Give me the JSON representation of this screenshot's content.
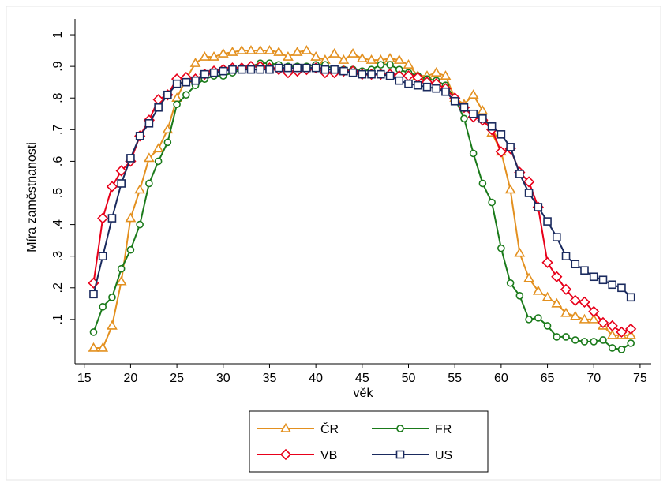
{
  "chart_data": {
    "type": "line",
    "x_label": "věk",
    "y_label": "Míra zaměstnanosti",
    "x": [
      16,
      17,
      18,
      19,
      20,
      21,
      22,
      23,
      24,
      25,
      26,
      27,
      28,
      29,
      30,
      31,
      32,
      33,
      34,
      35,
      36,
      37,
      38,
      39,
      40,
      41,
      42,
      43,
      44,
      45,
      46,
      47,
      48,
      49,
      50,
      51,
      52,
      53,
      54,
      55,
      56,
      57,
      58,
      59,
      60,
      61,
      62,
      63,
      64,
      65,
      66,
      67,
      68,
      69,
      70,
      71,
      72,
      73,
      74
    ],
    "xlim": [
      14,
      76.2
    ],
    "xticks": [
      15,
      20,
      25,
      30,
      35,
      40,
      45,
      50,
      55,
      60,
      65,
      70,
      75
    ],
    "ylim": [
      -0.04,
      1.05
    ],
    "yticks": [
      {
        "value": 0.1,
        "label": ".1"
      },
      {
        "value": 0.2,
        "label": ".2"
      },
      {
        "value": 0.3,
        "label": ".3"
      },
      {
        "value": 0.4,
        "label": ".4"
      },
      {
        "value": 0.5,
        "label": ".5"
      },
      {
        "value": 0.6,
        "label": ".6"
      },
      {
        "value": 0.7,
        "label": ".7"
      },
      {
        "value": 0.8,
        "label": ".8"
      },
      {
        "value": 0.9,
        "label": ".9"
      },
      1
    ],
    "legend_columns": 2,
    "series": [
      {
        "name": "ČR",
        "color": "#e3901f",
        "marker": "triangle",
        "values": [
          0.01,
          0.01,
          0.08,
          0.22,
          0.42,
          0.51,
          0.61,
          0.64,
          0.7,
          0.8,
          0.86,
          0.91,
          0.93,
          0.93,
          0.94,
          0.945,
          0.95,
          0.95,
          0.95,
          0.95,
          0.945,
          0.93,
          0.945,
          0.95,
          0.93,
          0.92,
          0.94,
          0.92,
          0.94,
          0.925,
          0.92,
          0.92,
          0.925,
          0.92,
          0.905,
          0.87,
          0.87,
          0.88,
          0.87,
          0.8,
          0.78,
          0.81,
          0.76,
          0.69,
          0.63,
          0.51,
          0.31,
          0.23,
          0.19,
          0.17,
          0.15,
          0.12,
          0.11,
          0.1,
          0.1,
          0.08,
          0.05,
          0.05,
          0.05
        ]
      },
      {
        "name": "FR",
        "color": "#1a7a1a",
        "marker": "circle",
        "values": [
          0.06,
          0.14,
          0.17,
          0.26,
          0.32,
          0.4,
          0.53,
          0.6,
          0.66,
          0.78,
          0.81,
          0.84,
          0.86,
          0.87,
          0.87,
          0.88,
          0.89,
          0.9,
          0.91,
          0.91,
          0.905,
          0.9,
          0.9,
          0.9,
          0.905,
          0.905,
          0.89,
          0.89,
          0.89,
          0.885,
          0.89,
          0.905,
          0.905,
          0.89,
          0.88,
          0.87,
          0.86,
          0.855,
          0.84,
          0.8,
          0.735,
          0.625,
          0.53,
          0.47,
          0.325,
          0.215,
          0.175,
          0.1,
          0.105,
          0.08,
          0.045,
          0.045,
          0.035,
          0.03,
          0.03,
          0.035,
          0.01,
          0.005,
          0.025
        ]
      },
      {
        "name": "VB",
        "color": "#e8001a",
        "marker": "diamond",
        "values": [
          0.215,
          0.42,
          0.52,
          0.57,
          0.6,
          0.68,
          0.73,
          0.795,
          0.81,
          0.86,
          0.865,
          0.86,
          0.875,
          0.885,
          0.89,
          0.895,
          0.895,
          0.9,
          0.9,
          0.895,
          0.89,
          0.88,
          0.885,
          0.89,
          0.895,
          0.88,
          0.88,
          0.885,
          0.885,
          0.875,
          0.875,
          0.875,
          0.875,
          0.87,
          0.87,
          0.865,
          0.85,
          0.845,
          0.83,
          0.8,
          0.77,
          0.74,
          0.73,
          0.7,
          0.63,
          0.64,
          0.565,
          0.535,
          0.455,
          0.28,
          0.235,
          0.195,
          0.16,
          0.155,
          0.125,
          0.09,
          0.08,
          0.06,
          0.07
        ]
      },
      {
        "name": "US",
        "color": "#1a2a5e",
        "marker": "square",
        "values": [
          0.18,
          0.3,
          0.42,
          0.53,
          0.61,
          0.68,
          0.72,
          0.77,
          0.81,
          0.845,
          0.85,
          0.855,
          0.875,
          0.88,
          0.885,
          0.89,
          0.89,
          0.89,
          0.89,
          0.89,
          0.895,
          0.895,
          0.895,
          0.895,
          0.895,
          0.89,
          0.89,
          0.885,
          0.88,
          0.875,
          0.875,
          0.875,
          0.87,
          0.855,
          0.845,
          0.84,
          0.835,
          0.83,
          0.82,
          0.79,
          0.77,
          0.75,
          0.735,
          0.71,
          0.685,
          0.645,
          0.56,
          0.5,
          0.455,
          0.41,
          0.36,
          0.3,
          0.275,
          0.255,
          0.235,
          0.225,
          0.21,
          0.2,
          0.17
        ]
      }
    ]
  }
}
